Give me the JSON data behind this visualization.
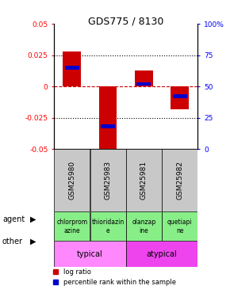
{
  "title": "GDS775 / 8130",
  "samples": [
    "GSM25980",
    "GSM25983",
    "GSM25981",
    "GSM25982"
  ],
  "log_ratio": [
    0.028,
    -0.053,
    0.013,
    -0.018
  ],
  "percentile_rank": [
    0.65,
    0.18,
    0.52,
    0.42
  ],
  "ylim": [
    -0.05,
    0.05
  ],
  "yticks_left": [
    -0.05,
    -0.025,
    0,
    0.025,
    0.05
  ],
  "yticks_right": [
    0,
    25,
    50,
    75,
    100
  ],
  "agent_labels": [
    "chlorprom\nazine",
    "thioridazin\ne",
    "olanzap\nine",
    "quetiapi\nne"
  ],
  "sample_bg_color": "#C8C8C8",
  "bar_width": 0.5,
  "blue_bar_width": 0.4,
  "red_color": "#CC0000",
  "blue_color": "#0000CC",
  "zero_line_color": "#CC0000",
  "typical_color": "#FF88FF",
  "atypical_color": "#EE44EE",
  "agent_green": "#88EE88"
}
